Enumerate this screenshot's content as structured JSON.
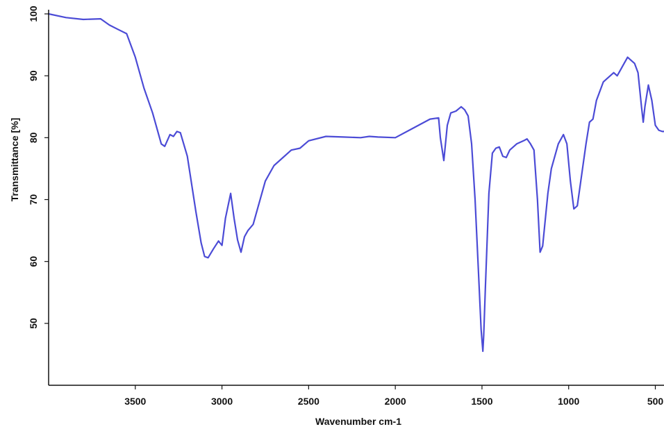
{
  "chart_data": {
    "type": "line",
    "title": "",
    "xlabel": "Wavenumber cm-1",
    "ylabel": "Transmittance [%]",
    "xlim": [
      4000,
      450
    ],
    "ylim": [
      40,
      100
    ],
    "x_reversed": true,
    "grid": false,
    "legend": "none",
    "xticks": [
      3500,
      3000,
      2500,
      2000,
      1500,
      1000,
      500
    ],
    "xtick_labels": [
      "3500",
      "3000",
      "2500",
      "2000",
      "1500",
      "1000",
      "500"
    ],
    "yticks": [
      100,
      90,
      80,
      70,
      60,
      50
    ],
    "ytick_labels": [
      "100",
      "90",
      "80",
      "70",
      "60",
      "50"
    ],
    "line_color": "#4b4bd6",
    "series": [
      {
        "x": [
          4000,
          3900,
          3800,
          3700,
          3650,
          3600,
          3550,
          3500,
          3450,
          3400,
          3350,
          3330,
          3300,
          3280,
          3260,
          3240,
          3200,
          3150,
          3120,
          3100,
          3080,
          3050,
          3020,
          3000,
          2980,
          2950,
          2930,
          2910,
          2890,
          2870,
          2850,
          2820,
          2800,
          2750,
          2700,
          2600,
          2550,
          2500,
          2400,
          2300,
          2200,
          2150,
          2100,
          2000,
          1900,
          1800,
          1750,
          1740,
          1720,
          1700,
          1680,
          1650,
          1620,
          1600,
          1580,
          1560,
          1540,
          1520,
          1505,
          1495,
          1490,
          1480,
          1460,
          1440,
          1420,
          1400,
          1380,
          1360,
          1340,
          1300,
          1260,
          1240,
          1220,
          1200,
          1180,
          1165,
          1150,
          1120,
          1100,
          1060,
          1030,
          1010,
          990,
          970,
          950,
          930,
          900,
          880,
          860,
          840,
          800,
          780,
          740,
          720,
          700,
          680,
          660,
          640,
          620,
          600,
          580,
          570,
          560,
          540,
          520,
          500,
          480,
          460,
          450
        ],
        "y": [
          100,
          99.4,
          99.1,
          99.2,
          98.2,
          97.5,
          96.8,
          93,
          88,
          84,
          79,
          78.6,
          80.5,
          80.2,
          81,
          80.8,
          77,
          68,
          63,
          60.8,
          60.6,
          62,
          63.3,
          62.6,
          67,
          71,
          67,
          63.5,
          61.5,
          64,
          65,
          66,
          68,
          73,
          75.5,
          78,
          78.3,
          79.5,
          80.2,
          80.1,
          80,
          80.2,
          80.1,
          80,
          81.5,
          83,
          83.2,
          80,
          76.3,
          82,
          84,
          84.3,
          85,
          84.5,
          83.5,
          79,
          70,
          58,
          49,
          45.5,
          48,
          56,
          71,
          77.5,
          78.3,
          78.5,
          77,
          76.8,
          78,
          79,
          79.5,
          79.8,
          79,
          78,
          70,
          61.5,
          62.5,
          71,
          75,
          79,
          80.5,
          79,
          73,
          68.5,
          69,
          73,
          79,
          82.5,
          83,
          86,
          89,
          89.5,
          90.5,
          90,
          91,
          92,
          93,
          92.5,
          92,
          90.5,
          85,
          82.5,
          85,
          88.5,
          86,
          82,
          81.2,
          81,
          81
        ]
      }
    ]
  }
}
